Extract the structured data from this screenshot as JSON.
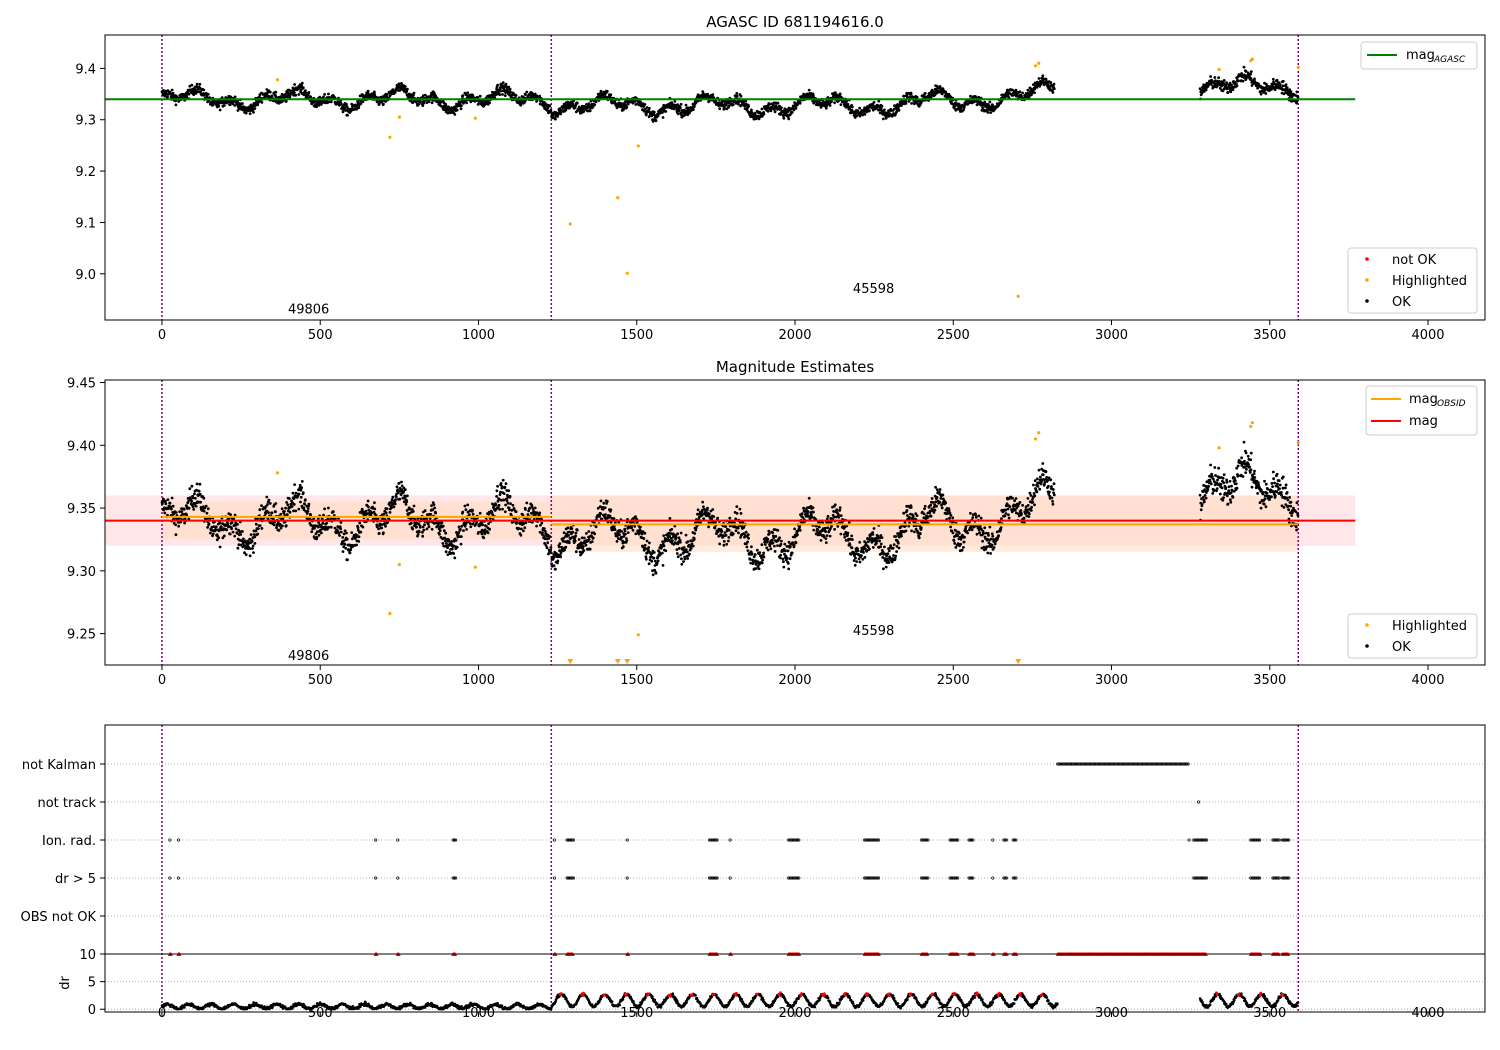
{
  "figure": {
    "title": "AGASC ID 681194616.0",
    "subtitle": "Magnitude Estimates"
  },
  "chart_data": [
    {
      "type": "scatter",
      "title": "AGASC ID 681194616.0",
      "xlim": [
        -180,
        4180
      ],
      "ylim": [
        8.91,
        9.465
      ],
      "xticks": [
        0,
        500,
        1000,
        1500,
        2000,
        2500,
        3000,
        3500,
        4000
      ],
      "yticks": [
        9.0,
        9.1,
        9.2,
        9.3,
        9.4
      ],
      "obsid_boundaries": [
        0,
        1230,
        3590
      ],
      "obsid_labels": [
        {
          "text": "49806",
          "x": 615,
          "y": 8.93
        },
        {
          "text": "45598",
          "x": 2400,
          "y": 8.97
        }
      ],
      "segments": [
        {
          "x": [
            0,
            2820
          ],
          "base": 9.34,
          "amp": 0.02,
          "noise": 0.01
        },
        {
          "x": [
            3280,
            3590
          ],
          "base": 9.365,
          "amp": 0.02,
          "noise": 0.012
        }
      ],
      "lines": [
        {
          "name": "mag_AGASC",
          "color": "#008000",
          "y": 9.34,
          "x": [
            -180,
            3770
          ]
        }
      ],
      "highlighted_outliers": [
        [
          365,
          9.378
        ],
        [
          720,
          9.266
        ],
        [
          750,
          9.305
        ],
        [
          990,
          9.303
        ],
        [
          1290,
          9.097
        ],
        [
          1440,
          9.148
        ],
        [
          1470,
          9.001
        ],
        [
          1505,
          9.249
        ],
        [
          2705,
          8.956
        ],
        [
          2760,
          9.405
        ],
        [
          2770,
          9.41
        ],
        [
          3340,
          9.398
        ],
        [
          3440,
          9.415
        ],
        [
          3445,
          9.418
        ],
        [
          3590,
          9.402
        ]
      ],
      "legend": {
        "position": "lower-right",
        "entries": [
          {
            "label": "not OK",
            "color": "#ff0000"
          },
          {
            "label": "Highlighted",
            "color": "#ffa500"
          },
          {
            "label": "OK",
            "color": "#000000"
          }
        ]
      },
      "legend_top": {
        "position": "top-right",
        "label": "mag",
        "sub": "AGASC",
        "color": "#008000"
      }
    },
    {
      "type": "scatter",
      "title": "Magnitude Estimates",
      "xlim": [
        -180,
        4180
      ],
      "ylim": [
        9.225,
        9.452
      ],
      "xticks": [
        0,
        500,
        1000,
        1500,
        2000,
        2500,
        3000,
        3500,
        4000
      ],
      "yticks": [
        9.25,
        9.3,
        9.35,
        9.4,
        9.45
      ],
      "obsid_boundaries": [
        0,
        1230,
        3590
      ],
      "obsid_labels": [
        {
          "text": "49806",
          "x": 615,
          "y": 9.232
        },
        {
          "text": "45598",
          "x": 2400,
          "y": 9.252
        }
      ],
      "bands": [
        {
          "x": [
            -180,
            3770
          ],
          "y": [
            9.32,
            9.36
          ],
          "color": "#ffb6c1",
          "opacity": 0.35
        },
        {
          "x": [
            0,
            1230
          ],
          "y": [
            9.325,
            9.355
          ],
          "color": "#ffdab9",
          "opacity": 0.5
        },
        {
          "x": [
            1230,
            3590
          ],
          "y": [
            9.315,
            9.36
          ],
          "color": "#ffdab9",
          "opacity": 0.5
        }
      ],
      "lines": [
        {
          "name": "mag_OBSID",
          "color": "#ffa500",
          "segments": [
            [
              0,
              1230,
              9.343
            ],
            [
              1230,
              3590,
              9.337
            ]
          ]
        },
        {
          "name": "mag",
          "color": "#ff0000",
          "y": 9.34,
          "x": [
            -180,
            3770
          ]
        }
      ],
      "offscale_markers": [
        1290,
        1440,
        1470,
        2705
      ],
      "legend": {
        "position": "lower-right",
        "entries": [
          {
            "label": "Highlighted",
            "color": "#ffa500"
          },
          {
            "label": "OK",
            "color": "#000000"
          }
        ]
      },
      "legend_top": {
        "position": "top-right",
        "entries": [
          {
            "label": "mag",
            "sub": "OBSID",
            "color": "#ffa500"
          },
          {
            "label": "mag",
            "sub": "",
            "color": "#ff0000"
          }
        ]
      }
    },
    {
      "type": "scatter",
      "title": "",
      "xlim": [
        -180,
        4180
      ],
      "flag_rows": [
        "not Kalman",
        "not track",
        "Ion. rad.",
        "dr > 5",
        "OBS not OK"
      ],
      "flags": {
        "not Kalman": [
          [
            2830,
            3245
          ]
        ],
        "not track": [
          [
            3275,
            3278
          ]
        ],
        "Ion. rad.": [
          [
            25,
            28
          ],
          [
            52,
            55
          ],
          [
            675,
            678
          ],
          [
            745,
            748
          ],
          [
            920,
            928
          ],
          [
            1240,
            1243
          ],
          [
            1280,
            1300
          ],
          [
            1470,
            1473
          ],
          [
            1730,
            1755
          ],
          [
            1795,
            1798
          ],
          [
            1980,
            2015
          ],
          [
            2220,
            2265
          ],
          [
            2400,
            2420
          ],
          [
            2490,
            2515
          ],
          [
            2550,
            2565
          ],
          [
            2625,
            2628
          ],
          [
            2660,
            2670
          ],
          [
            2690,
            2700
          ],
          [
            3245,
            3248
          ],
          [
            3260,
            3300
          ],
          [
            3440,
            3470
          ],
          [
            3510,
            3530
          ],
          [
            3540,
            3560
          ]
        ],
        "dr > 5": [
          [
            25,
            28
          ],
          [
            52,
            55
          ],
          [
            675,
            678
          ],
          [
            745,
            748
          ],
          [
            920,
            928
          ],
          [
            1240,
            1243
          ],
          [
            1280,
            1300
          ],
          [
            1470,
            1473
          ],
          [
            1730,
            1755
          ],
          [
            1795,
            1798
          ],
          [
            1980,
            2015
          ],
          [
            2220,
            2265
          ],
          [
            2400,
            2420
          ],
          [
            2490,
            2515
          ],
          [
            2550,
            2565
          ],
          [
            2625,
            2628
          ],
          [
            2660,
            2670
          ],
          [
            2690,
            2700
          ],
          [
            3260,
            3300
          ],
          [
            3440,
            3470
          ],
          [
            3510,
            3530
          ],
          [
            3540,
            3560
          ]
        ],
        "OBS not OK": []
      },
      "dr": {
        "ylabel": "dr",
        "ylim": [
          -0.5,
          10
        ],
        "yticks": [
          0,
          5,
          10
        ],
        "segments": [
          {
            "x": [
              0,
              2830
            ]
          },
          {
            "x": [
              3280,
              3590
            ]
          }
        ],
        "clipped_x": [
          [
            25,
            28
          ],
          [
            52,
            55
          ],
          [
            675,
            678
          ],
          [
            745,
            748
          ],
          [
            920,
            928
          ],
          [
            1240,
            1243
          ],
          [
            1280,
            1300
          ],
          [
            1470,
            1473
          ],
          [
            1730,
            1755
          ],
          [
            1795,
            1798
          ],
          [
            1980,
            2015
          ],
          [
            2220,
            2265
          ],
          [
            2400,
            2420
          ],
          [
            2490,
            2515
          ],
          [
            2550,
            2565
          ],
          [
            2625,
            2628
          ],
          [
            2660,
            2670
          ],
          [
            2690,
            2700
          ],
          [
            2830,
            3300
          ],
          [
            3440,
            3470
          ],
          [
            3510,
            3530
          ],
          [
            3540,
            3560
          ]
        ]
      }
    }
  ],
  "colors": {
    "ok": "#000000",
    "highlighted": "#ffa500",
    "not_ok": "#ff0000",
    "obsid_line": "#800080",
    "grid": "#b0b0b0"
  }
}
